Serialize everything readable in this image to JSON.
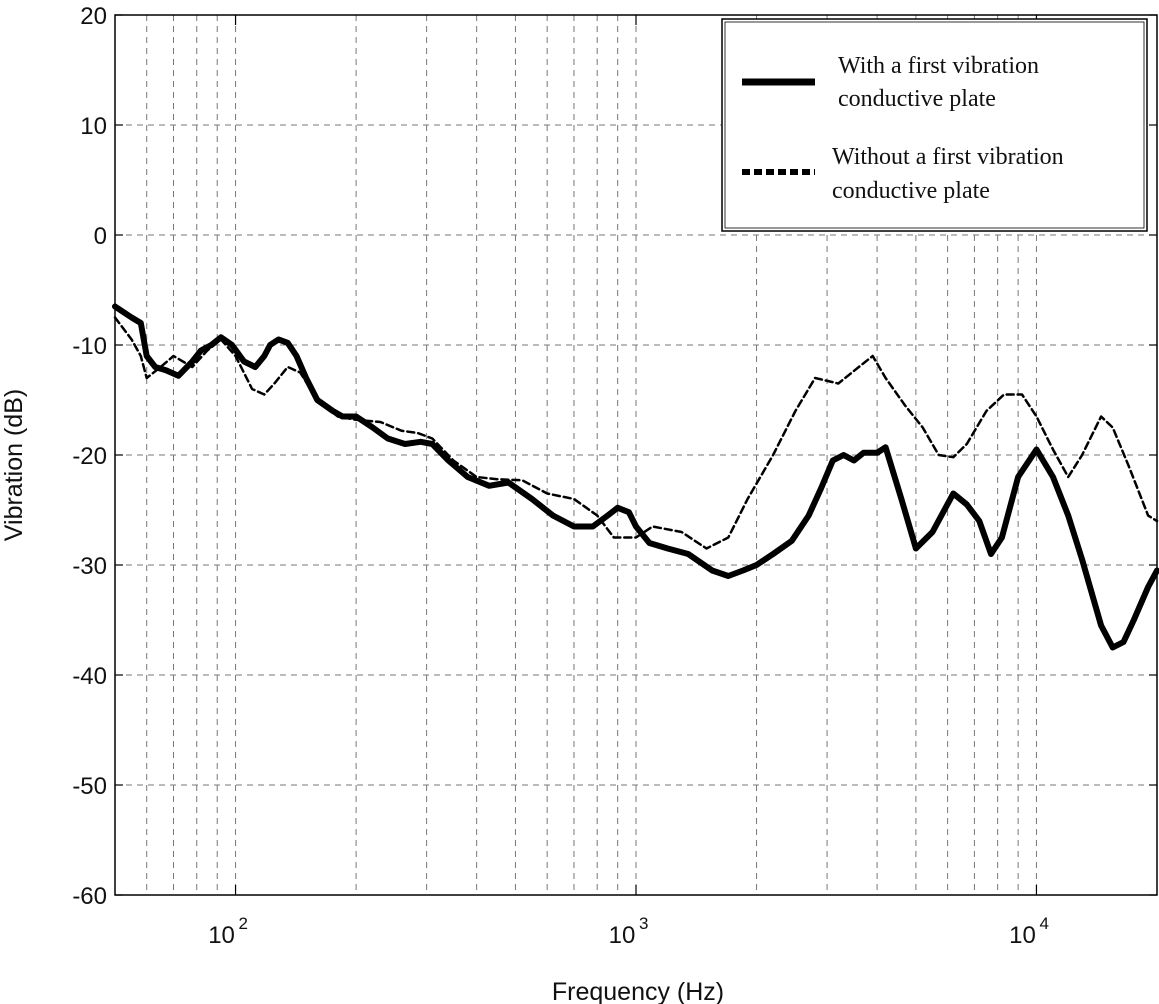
{
  "chart_data": {
    "type": "line",
    "xlabel": "Frequency (Hz)",
    "ylabel": "Vibration (dB)",
    "xscale": "log",
    "xlim": [
      50,
      20000
    ],
    "ylim": [
      -60,
      20
    ],
    "yticks": [
      20,
      10,
      0,
      -10,
      -20,
      -30,
      -40,
      -50,
      -60
    ],
    "xticks": [
      100,
      1000,
      10000
    ],
    "xtick_labels": [
      {
        "base": "10",
        "exp": "2"
      },
      {
        "base": "10",
        "exp": "3"
      },
      {
        "base": "10",
        "exp": "4"
      }
    ],
    "grid": true,
    "legend_position": "top-right",
    "series": [
      {
        "name": "With a first vibration conductive plate",
        "legend_lines": [
          "With a first vibration",
          "conductive plate"
        ],
        "style": "solid",
        "color": "#000000",
        "points": [
          [
            50,
            -6.5
          ],
          [
            55,
            -7.5
          ],
          [
            58,
            -8
          ],
          [
            60,
            -11
          ],
          [
            63,
            -12
          ],
          [
            67,
            -12.3
          ],
          [
            72,
            -12.8
          ],
          [
            78,
            -11.5
          ],
          [
            82,
            -10.5
          ],
          [
            87,
            -10
          ],
          [
            92,
            -9.3
          ],
          [
            98,
            -10
          ],
          [
            105,
            -11.5
          ],
          [
            112,
            -12
          ],
          [
            118,
            -11
          ],
          [
            122,
            -10
          ],
          [
            128,
            -9.5
          ],
          [
            135,
            -9.8
          ],
          [
            142,
            -11
          ],
          [
            150,
            -13
          ],
          [
            160,
            -15
          ],
          [
            175,
            -16
          ],
          [
            185,
            -16.5
          ],
          [
            200,
            -16.5
          ],
          [
            220,
            -17.5
          ],
          [
            240,
            -18.5
          ],
          [
            265,
            -19
          ],
          [
            290,
            -18.8
          ],
          [
            310,
            -19
          ],
          [
            340,
            -20.5
          ],
          [
            380,
            -22
          ],
          [
            430,
            -22.8
          ],
          [
            480,
            -22.5
          ],
          [
            550,
            -24
          ],
          [
            620,
            -25.5
          ],
          [
            700,
            -26.5
          ],
          [
            780,
            -26.5
          ],
          [
            850,
            -25.5
          ],
          [
            900,
            -24.8
          ],
          [
            960,
            -25.2
          ],
          [
            1000,
            -26.5
          ],
          [
            1080,
            -28
          ],
          [
            1200,
            -28.5
          ],
          [
            1350,
            -29
          ],
          [
            1550,
            -30.5
          ],
          [
            1700,
            -31
          ],
          [
            1850,
            -30.5
          ],
          [
            2000,
            -30
          ],
          [
            2200,
            -29
          ],
          [
            2450,
            -27.8
          ],
          [
            2700,
            -25.5
          ],
          [
            2900,
            -23
          ],
          [
            3100,
            -20.5
          ],
          [
            3300,
            -20
          ],
          [
            3500,
            -20.5
          ],
          [
            3700,
            -19.8
          ],
          [
            4000,
            -19.8
          ],
          [
            4200,
            -19.3
          ],
          [
            4600,
            -24
          ],
          [
            5000,
            -28.5
          ],
          [
            5500,
            -27
          ],
          [
            6200,
            -23.5
          ],
          [
            6700,
            -24.5
          ],
          [
            7200,
            -26
          ],
          [
            7700,
            -29
          ],
          [
            8200,
            -27.5
          ],
          [
            9000,
            -22
          ],
          [
            10000,
            -19.5
          ],
          [
            11000,
            -22
          ],
          [
            12000,
            -25.5
          ],
          [
            13000,
            -29.5
          ],
          [
            14500,
            -35.5
          ],
          [
            15500,
            -37.5
          ],
          [
            16500,
            -37
          ],
          [
            17500,
            -35
          ],
          [
            19000,
            -32
          ],
          [
            20000,
            -30.5
          ]
        ]
      },
      {
        "name": "Without a first vibration conductive plate",
        "legend_lines": [
          "Without a first vibration",
          "conductive plate"
        ],
        "style": "dashed",
        "color": "#000000",
        "points": [
          [
            50,
            -7.5
          ],
          [
            55,
            -9.5
          ],
          [
            58,
            -11
          ],
          [
            60,
            -13
          ],
          [
            65,
            -12
          ],
          [
            70,
            -11
          ],
          [
            78,
            -12
          ],
          [
            85,
            -10.5
          ],
          [
            92,
            -9.5
          ],
          [
            100,
            -11
          ],
          [
            110,
            -14
          ],
          [
            118,
            -14.5
          ],
          [
            125,
            -13.5
          ],
          [
            135,
            -12
          ],
          [
            145,
            -12.5
          ],
          [
            160,
            -15
          ],
          [
            180,
            -16.5
          ],
          [
            200,
            -16.8
          ],
          [
            230,
            -17
          ],
          [
            260,
            -17.8
          ],
          [
            285,
            -18
          ],
          [
            310,
            -18.5
          ],
          [
            350,
            -20.5
          ],
          [
            400,
            -22
          ],
          [
            450,
            -22.2
          ],
          [
            520,
            -22.3
          ],
          [
            600,
            -23.5
          ],
          [
            700,
            -24
          ],
          [
            800,
            -25.5
          ],
          [
            880,
            -27.5
          ],
          [
            1000,
            -27.5
          ],
          [
            1100,
            -26.5
          ],
          [
            1300,
            -27
          ],
          [
            1500,
            -28.5
          ],
          [
            1700,
            -27.5
          ],
          [
            1900,
            -24
          ],
          [
            2200,
            -20
          ],
          [
            2500,
            -16
          ],
          [
            2800,
            -13
          ],
          [
            3200,
            -13.5
          ],
          [
            3600,
            -12
          ],
          [
            3900,
            -11
          ],
          [
            4200,
            -13
          ],
          [
            4700,
            -15.5
          ],
          [
            5200,
            -17.5
          ],
          [
            5700,
            -20
          ],
          [
            6200,
            -20.2
          ],
          [
            6700,
            -19
          ],
          [
            7500,
            -16
          ],
          [
            8300,
            -14.5
          ],
          [
            9200,
            -14.5
          ],
          [
            10000,
            -16.5
          ],
          [
            11000,
            -19.5
          ],
          [
            12000,
            -22
          ],
          [
            13000,
            -20
          ],
          [
            14500,
            -16.5
          ],
          [
            15500,
            -17.5
          ],
          [
            17000,
            -21
          ],
          [
            19000,
            -25.5
          ],
          [
            20000,
            -26
          ]
        ]
      }
    ]
  }
}
